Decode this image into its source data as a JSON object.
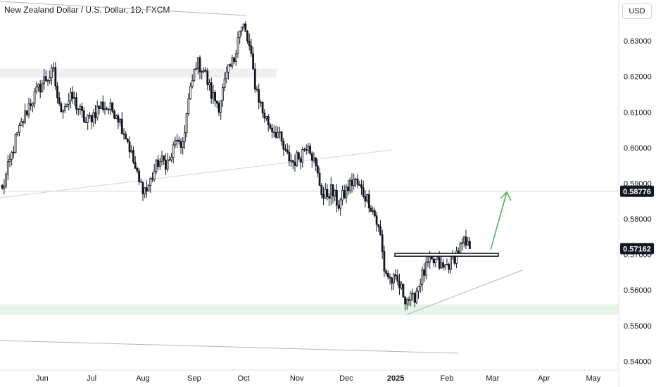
{
  "header": {
    "title": "New Zealand Dollar / U.S. Dollar, 1D, FXCM",
    "currency_button": "USD"
  },
  "chart_data": {
    "type": "candlestick",
    "title": "New Zealand Dollar / U.S. Dollar, 1D, FXCM",
    "ylim": [
      0.5375,
      0.6415
    ],
    "y_ticks": [
      {
        "label": "0.63000",
        "value": 0.63
      },
      {
        "label": "0.62000",
        "value": 0.62
      },
      {
        "label": "0.61000",
        "value": 0.61
      },
      {
        "label": "0.60000",
        "value": 0.6
      },
      {
        "label": "0.59000",
        "value": 0.59
      },
      {
        "label": "0.58000",
        "value": 0.58
      },
      {
        "label": "0.57000",
        "value": 0.57
      },
      {
        "label": "0.56000",
        "value": 0.56
      },
      {
        "label": "0.55000",
        "value": 0.55
      },
      {
        "label": "0.54000",
        "value": 0.54
      }
    ],
    "x_ticks": [
      {
        "label": "May",
        "bar": -6
      },
      {
        "label": "Jun",
        "bar": 21
      },
      {
        "label": "Jul",
        "bar": 47
      },
      {
        "label": "Aug",
        "bar": 74
      },
      {
        "label": "Sep",
        "bar": 101
      },
      {
        "label": "Oct",
        "bar": 127
      },
      {
        "label": "Nov",
        "bar": 155
      },
      {
        "label": "Dec",
        "bar": 181
      },
      {
        "label": "2025",
        "bar": 207,
        "bold": true
      },
      {
        "label": "Feb",
        "bar": 234
      },
      {
        "label": "Mar",
        "bar": 258
      },
      {
        "label": "Apr",
        "bar": 285
      },
      {
        "label": "May",
        "bar": 311
      }
    ],
    "price_tags": [
      {
        "label": "0.58776",
        "value": 0.58776
      },
      {
        "label": "0.57162",
        "value": 0.57162
      }
    ],
    "anchors": [
      [
        0,
        0.588
      ],
      [
        7,
        0.602
      ],
      [
        14,
        0.612
      ],
      [
        22,
        0.619
      ],
      [
        27,
        0.621
      ],
      [
        30,
        0.611
      ],
      [
        37,
        0.614
      ],
      [
        44,
        0.607
      ],
      [
        52,
        0.612
      ],
      [
        60,
        0.61
      ],
      [
        66,
        0.602
      ],
      [
        72,
        0.59
      ],
      [
        76,
        0.588
      ],
      [
        82,
        0.596
      ],
      [
        88,
        0.596
      ],
      [
        92,
        0.603
      ],
      [
        94,
        0.598
      ],
      [
        98,
        0.613
      ],
      [
        102,
        0.624
      ],
      [
        106,
        0.622
      ],
      [
        110,
        0.615
      ],
      [
        114,
        0.612
      ],
      [
        118,
        0.62
      ],
      [
        122,
        0.625
      ],
      [
        124,
        0.632
      ],
      [
        127,
        0.634
      ],
      [
        130,
        0.628
      ],
      [
        133,
        0.618
      ],
      [
        137,
        0.61
      ],
      [
        141,
        0.606
      ],
      [
        145,
        0.604
      ],
      [
        149,
        0.598
      ],
      [
        153,
        0.596
      ],
      [
        157,
        0.598
      ],
      [
        161,
        0.602
      ],
      [
        165,
        0.594
      ],
      [
        169,
        0.586
      ],
      [
        173,
        0.588
      ],
      [
        177,
        0.584
      ],
      [
        181,
        0.588
      ],
      [
        185,
        0.591
      ],
      [
        189,
        0.588
      ],
      [
        193,
        0.585
      ],
      [
        196,
        0.581
      ],
      [
        199,
        0.575
      ],
      [
        201,
        0.566
      ],
      [
        204,
        0.563
      ],
      [
        208,
        0.562
      ],
      [
        212,
        0.558
      ],
      [
        216,
        0.557
      ],
      [
        220,
        0.563
      ],
      [
        224,
        0.567
      ],
      [
        228,
        0.568
      ],
      [
        232,
        0.566
      ],
      [
        236,
        0.568
      ],
      [
        240,
        0.571
      ],
      [
        243,
        0.573
      ],
      [
        246,
        0.5716
      ]
    ],
    "drawings": {
      "horizontal_line_price": 0.58776,
      "support_zone": [
        0.553,
        0.556
      ],
      "resistance_zone": [
        0.6197,
        0.6222
      ],
      "breakout_box": [
        0.5695,
        0.5703
      ],
      "arrow": {
        "from": [
          245,
          0.5715
        ],
        "to": [
          249,
          0.5877
        ]
      }
    },
    "grid": false,
    "legend": "none"
  }
}
